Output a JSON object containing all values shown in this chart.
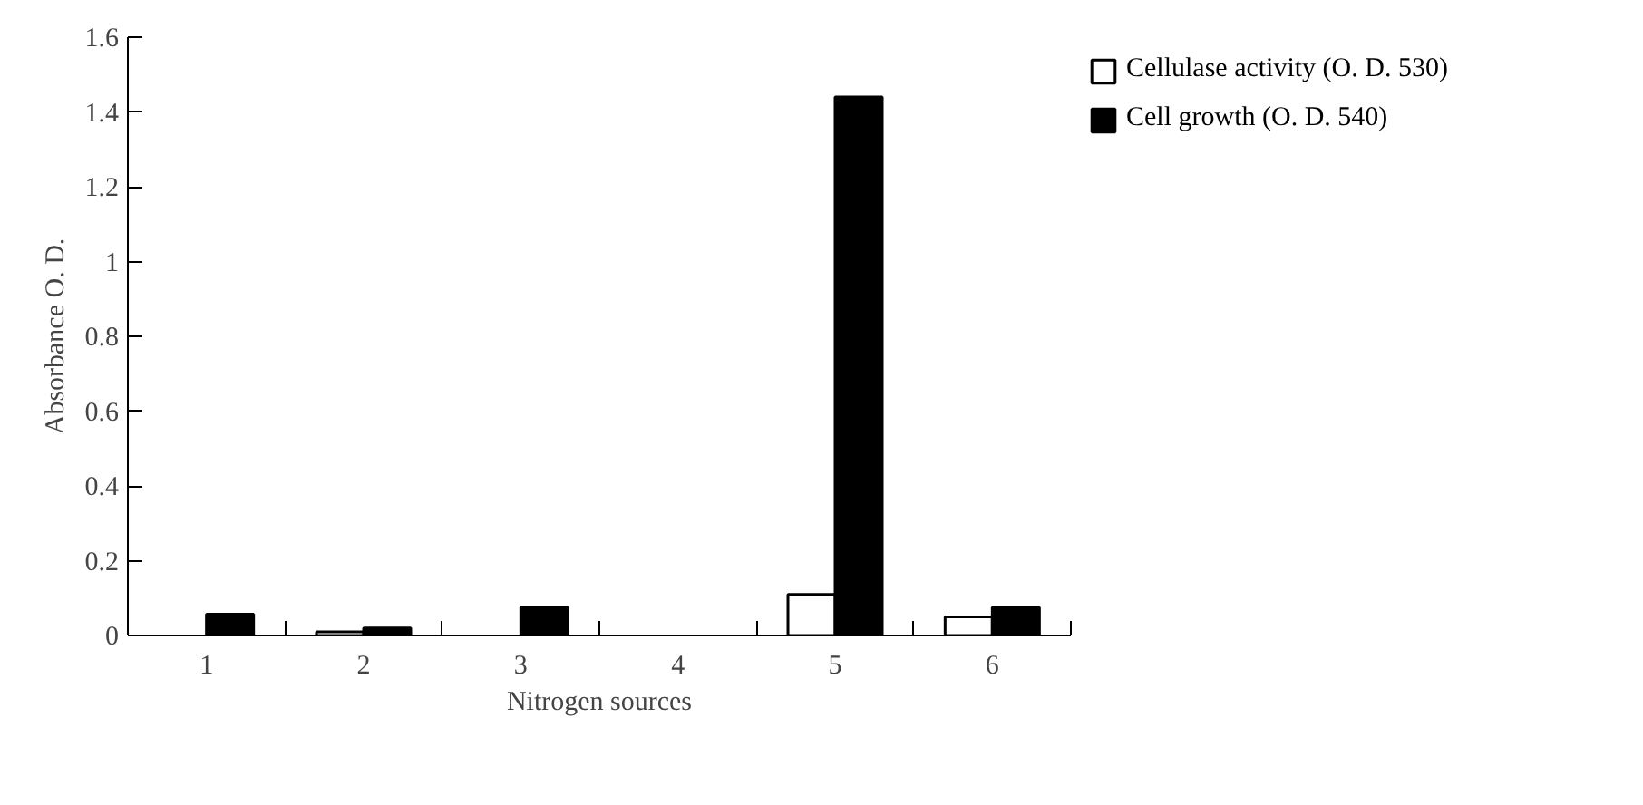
{
  "chart_data": {
    "type": "bar",
    "xlabel": "Nitrogen sources",
    "ylabel": "Absorbance O. D.",
    "categories": [
      "1",
      "2",
      "3",
      "4",
      "5",
      "6"
    ],
    "series": [
      {
        "name": "Cellulase activity (O. D. 530)",
        "color": "#ffffff",
        "values": [
          0,
          0.01,
          0,
          0,
          0.11,
          0.05
        ]
      },
      {
        "name": "Cell growth (O. D. 540)",
        "color": "#000000",
        "values": [
          0.057,
          0.02,
          0.075,
          0,
          1.44,
          0.075
        ]
      }
    ],
    "ylim": [
      0,
      1.6
    ],
    "yticks": [
      0,
      0.2,
      0.4,
      0.6,
      0.8,
      1,
      1.2,
      1.4,
      1.6
    ],
    "grid": false,
    "legend": "top right"
  }
}
